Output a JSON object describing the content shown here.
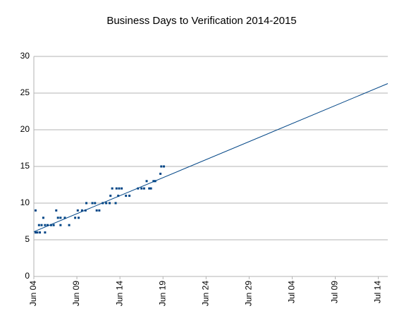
{
  "chart_data": {
    "type": "scatter",
    "title": "Business Days to Verification 2014-2015",
    "color": "#004586",
    "grid": true,
    "x": [
      4.2,
      4.2,
      4.4,
      4.7,
      4.6,
      4.9,
      5.1,
      5.3,
      5.3,
      5.6,
      6.0,
      6.3,
      6.6,
      6.8,
      7.1,
      7.1,
      7.6,
      8.1,
      8.8,
      9.2,
      9.1,
      9.6,
      10.0,
      10.1,
      10.8,
      11.1,
      11.3,
      11.6,
      12.0,
      12.4,
      12.8,
      12.9,
      13.1,
      13.5,
      13.6,
      13.8,
      13.9,
      14.2,
      14.7,
      15.1,
      16.1,
      16.5,
      16.8,
      17.1,
      17.4,
      17.6,
      17.9,
      18.1,
      18.7,
      18.8,
      19.1
    ],
    "values": [
      9,
      6,
      6,
      6,
      7,
      7,
      8,
      6,
      7,
      7,
      7,
      7,
      9,
      8,
      8,
      7,
      8,
      7,
      8,
      8,
      9,
      9,
      9,
      10,
      10,
      10,
      9,
      9,
      10,
      10,
      10,
      11,
      12,
      10,
      12,
      11,
      12,
      12,
      11,
      11,
      12,
      12,
      12,
      13,
      12,
      12,
      13,
      13,
      14,
      15,
      15
    ],
    "trend": {
      "x": [
        4,
        45.1
      ],
      "values": [
        6.1,
        26.3
      ]
    },
    "xlim": [
      4,
      45.1
    ],
    "xticks": [
      {
        "value": 4,
        "label": "Jun 04"
      },
      {
        "value": 9,
        "label": "Jun 09"
      },
      {
        "value": 14,
        "label": "Jun 14"
      },
      {
        "value": 19,
        "label": "Jun 19"
      },
      {
        "value": 24,
        "label": "Jun 24"
      },
      {
        "value": 29,
        "label": "Jun 29"
      },
      {
        "value": 34,
        "label": "Jul 04"
      },
      {
        "value": 39,
        "label": "Jul 09"
      },
      {
        "value": 44,
        "label": "Jul 14"
      }
    ],
    "ylim": [
      0,
      30
    ],
    "yticks": [
      0,
      5,
      10,
      15,
      20,
      25,
      30
    ]
  }
}
